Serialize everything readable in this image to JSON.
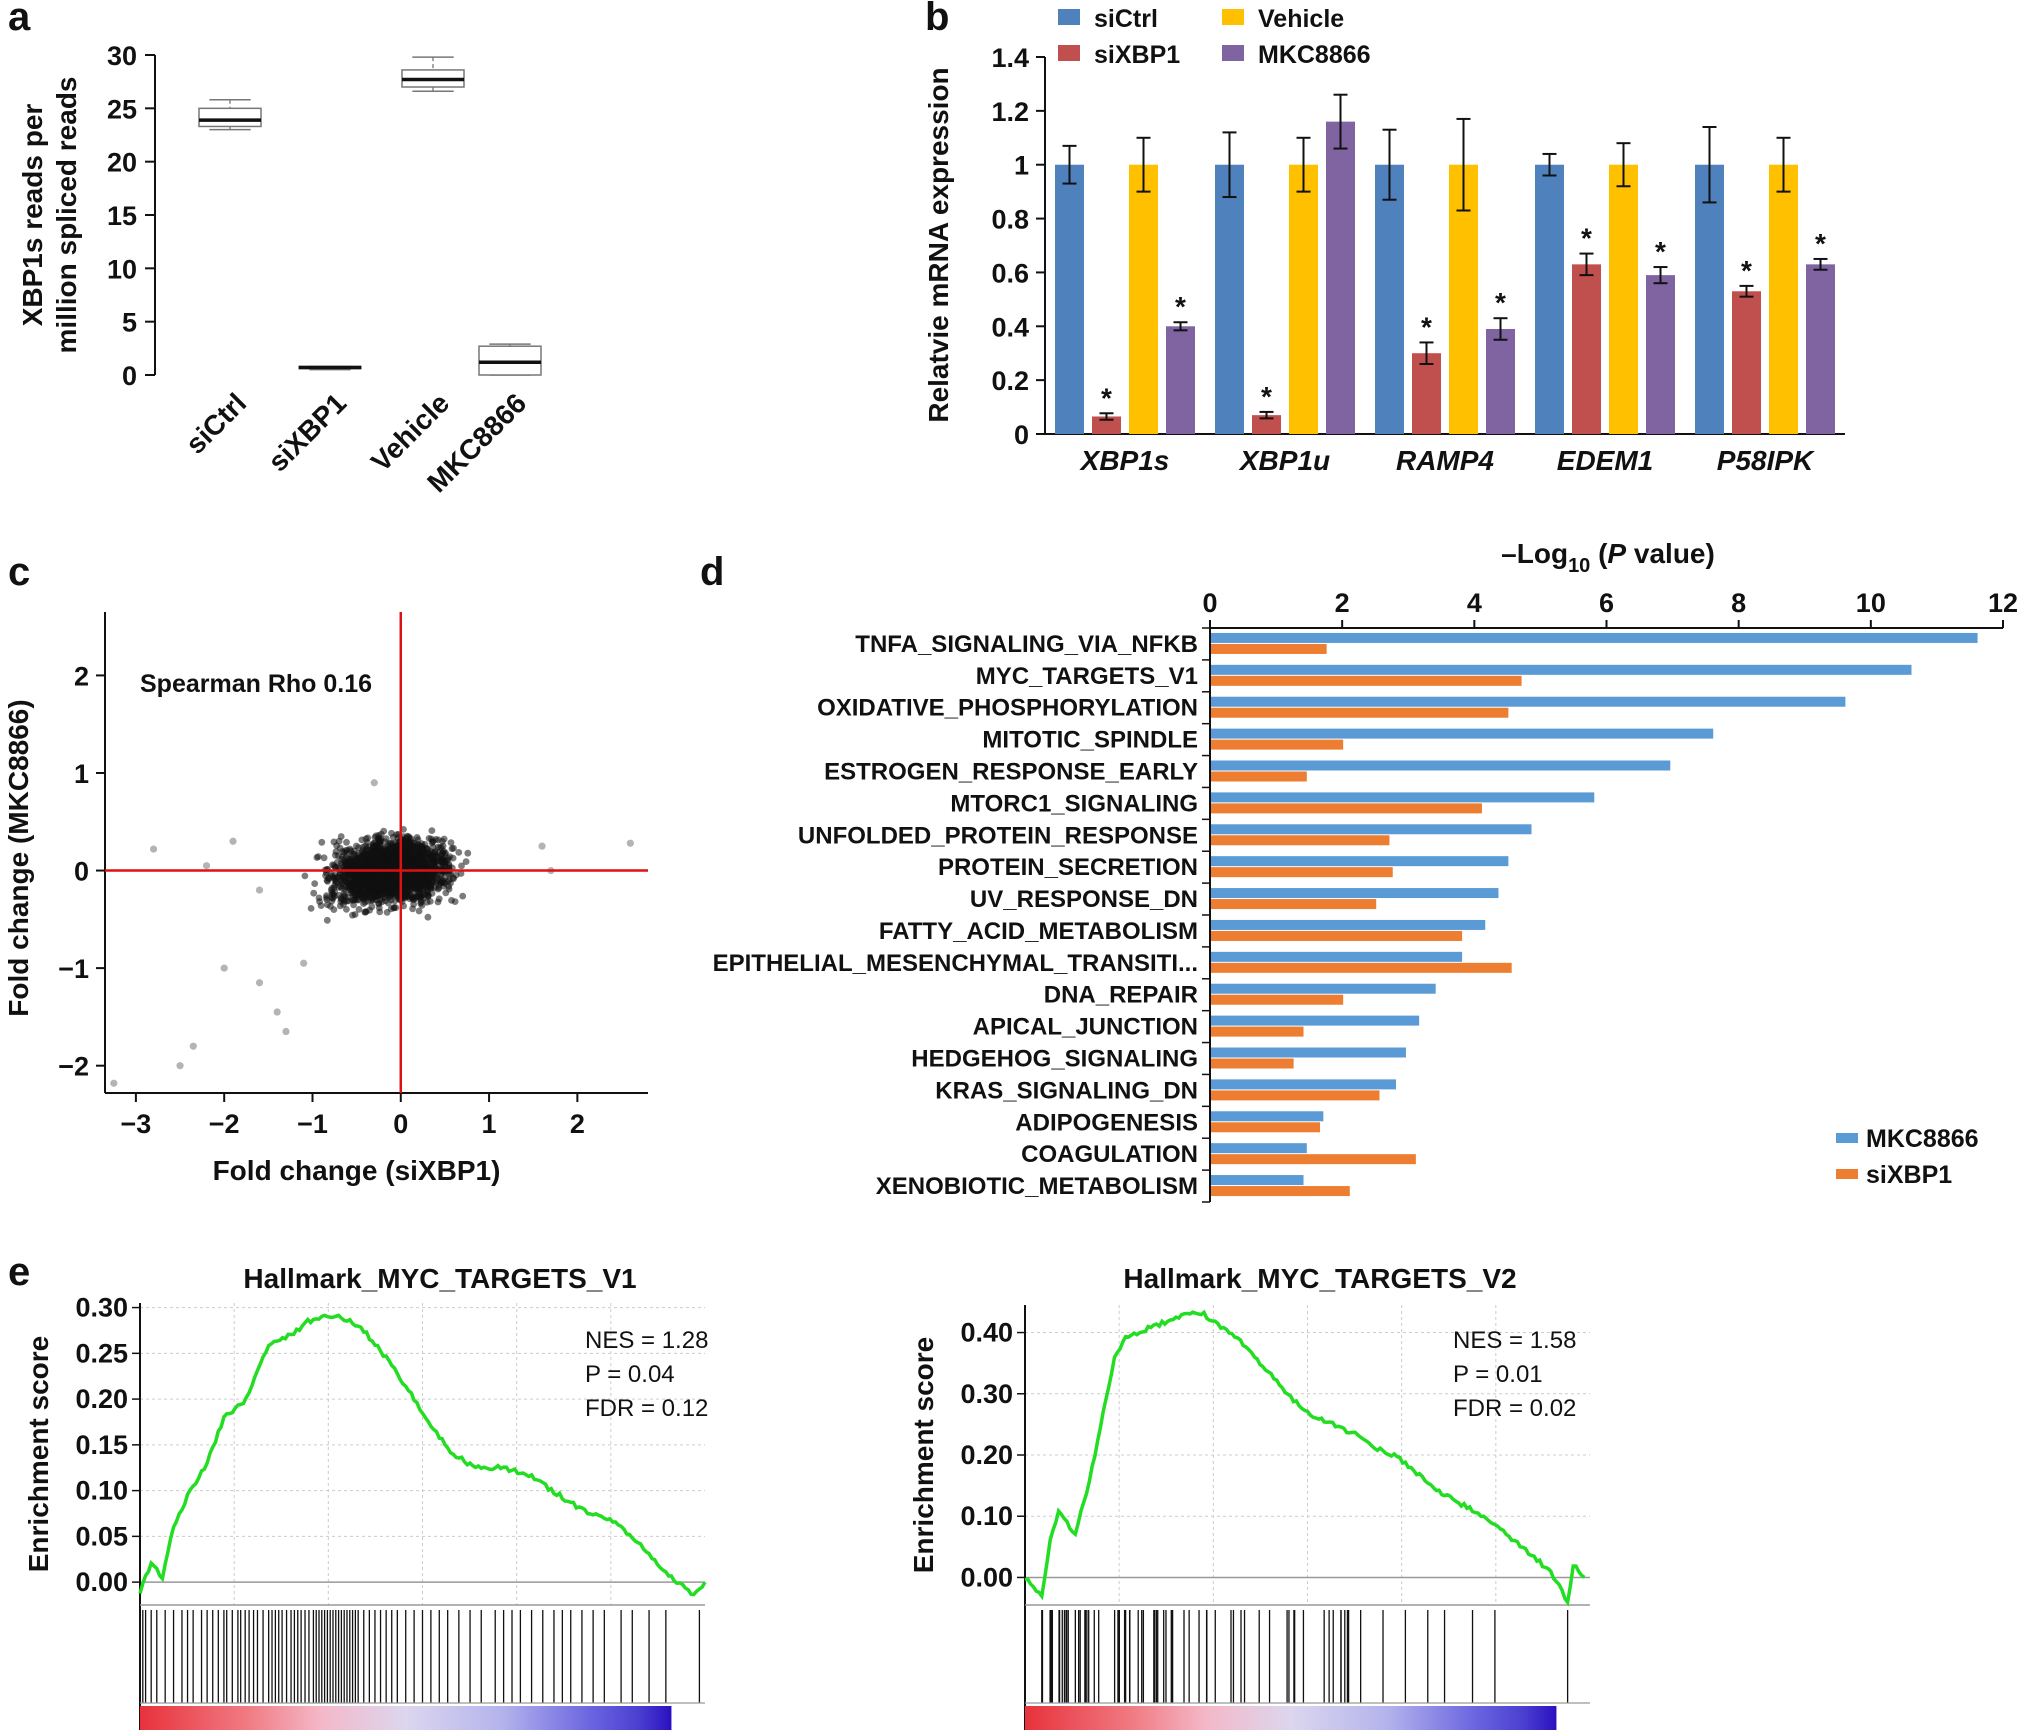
{
  "chart_data": [
    {
      "panel": "a",
      "type": "boxplot",
      "ylabel": "XBP1s reads per million spliced reads",
      "ylim": [
        0,
        30
      ],
      "yticks": [
        "0",
        "5",
        "10",
        "15",
        "20",
        "25",
        "30"
      ],
      "categories": [
        "siCtrl",
        "siXBP1",
        "Vehicle",
        "MKC8866"
      ],
      "boxes": [
        {
          "min": 23.0,
          "q1": 23.3,
          "median": 23.9,
          "q3": 25.0,
          "max": 25.8
        },
        {
          "min": 0.5,
          "q1": 0.6,
          "median": 0.7,
          "q3": 0.8,
          "max": 0.8
        },
        {
          "min": 26.6,
          "q1": 27.0,
          "median": 27.7,
          "q3": 28.6,
          "max": 29.8
        },
        {
          "min": 0.0,
          "q1": 0.0,
          "median": 1.2,
          "q3": 2.7,
          "max": 2.9
        }
      ]
    },
    {
      "panel": "b",
      "type": "bar",
      "ylabel": "Relatvie mRNA expression",
      "ylim": [
        0,
        1.4
      ],
      "yticks": [
        "0",
        "0.2",
        "0.4",
        "0.6",
        "0.8",
        "1",
        "1.2",
        "1.4"
      ],
      "categories": [
        "XBP1s",
        "XBP1u",
        "RAMP4",
        "EDEM1",
        "P58IPK"
      ],
      "legend_order": [
        "siCtrl",
        "siXBP1",
        "Vehicle",
        "MKC8866"
      ],
      "series": [
        {
          "name": "siCtrl",
          "color": "#4f81bd",
          "values": [
            1.0,
            1.0,
            1.0,
            1.0,
            1.0
          ],
          "errors": [
            0.07,
            0.12,
            0.13,
            0.04,
            0.14
          ],
          "sig": [
            false,
            false,
            false,
            false,
            false
          ]
        },
        {
          "name": "siXBP1",
          "color": "#c0504d",
          "values": [
            0.065,
            0.07,
            0.3,
            0.63,
            0.53
          ],
          "errors": [
            0.012,
            0.012,
            0.04,
            0.04,
            0.02
          ],
          "sig": [
            true,
            true,
            true,
            true,
            true
          ]
        },
        {
          "name": "Vehicle",
          "color": "#ffc000",
          "values": [
            1.0,
            1.0,
            1.0,
            1.0,
            1.0
          ],
          "errors": [
            0.1,
            0.1,
            0.17,
            0.08,
            0.1
          ],
          "sig": [
            false,
            false,
            false,
            false,
            false
          ]
        },
        {
          "name": "MKC8866",
          "color": "#8064a2",
          "values": [
            0.4,
            1.16,
            0.39,
            0.59,
            0.63
          ],
          "errors": [
            0.015,
            0.1,
            0.04,
            0.03,
            0.02
          ],
          "sig": [
            true,
            false,
            true,
            true,
            true
          ]
        }
      ],
      "sig_marker": "*"
    },
    {
      "panel": "c",
      "type": "scatter",
      "annotation": "Spearman Rho 0.16",
      "xlabel": "Fold change (siXBP1)",
      "ylabel": "Fold change (MKC8866)",
      "xlim": [
        -3.35,
        2.8
      ],
      "ylim": [
        -2.28,
        2.65
      ],
      "xticks": [
        -3,
        -2,
        -1,
        0,
        1,
        2
      ],
      "yticks": [
        -2,
        -1,
        0,
        1,
        2
      ],
      "xtick_labels": [
        "−3",
        "−2",
        "−1",
        "0",
        "1",
        "2"
      ],
      "ytick_labels": [
        "−2",
        "−1",
        "0",
        "1",
        "2"
      ],
      "reference_lines": {
        "x": 0,
        "y": 0,
        "color": "#dd1111"
      },
      "outliers": [
        [
          -3.25,
          -2.18
        ],
        [
          -2.5,
          -2.0
        ],
        [
          -2.35,
          -1.8
        ],
        [
          -2.8,
          0.22
        ],
        [
          -2.0,
          -1.0
        ],
        [
          -1.3,
          -1.65
        ],
        [
          -1.6,
          -0.2
        ],
        [
          -1.9,
          0.3
        ],
        [
          -2.2,
          0.05
        ],
        [
          2.6,
          0.28
        ],
        [
          1.7,
          0.0
        ],
        [
          1.6,
          0.25
        ],
        [
          -0.3,
          0.9
        ],
        [
          -1.6,
          -1.15
        ],
        [
          -1.4,
          -1.45
        ],
        [
          -1.1,
          -0.95
        ]
      ]
    },
    {
      "panel": "d",
      "type": "bar",
      "orientation": "horizontal",
      "xlabel_prefix": "–Log",
      "xlabel_sub": "10",
      "xlabel_p": "P",
      "xlabel_suffix": "value)",
      "xlim": [
        0,
        12
      ],
      "xticks": [
        "0",
        "2",
        "4",
        "6",
        "8",
        "10",
        "12"
      ],
      "categories": [
        "TNFA_SIGNALING_VIA_NFKB",
        "MYC_TARGETS_V1",
        "OXIDATIVE_PHOSPHORYLATION",
        "MITOTIC_SPINDLE",
        "ESTROGEN_RESPONSE_EARLY",
        "MTORC1_SIGNALING",
        "UNFOLDED_PROTEIN_RESPONSE",
        "PROTEIN_SECRETION",
        "UV_RESPONSE_DN",
        "FATTY_ACID_METABOLISM",
        "EPITHELIAL_MESENCHYMAL_TRANSITI...",
        "DNA_REPAIR",
        "APICAL_JUNCTION",
        "HEDGEHOG_SIGNALING",
        "KRAS_SIGNALING_DN",
        "ADIPOGENESIS",
        "COAGULATION",
        "XENOBIOTIC_METABOLISM"
      ],
      "highlight": "MYC_TARGETS_V1",
      "highlight_color": "#c00000",
      "series": [
        {
          "name": "MKC8866",
          "color": "#5b9bd5",
          "values": [
            11.6,
            10.6,
            9.6,
            7.6,
            6.95,
            5.8,
            4.85,
            4.5,
            4.35,
            4.15,
            3.8,
            3.4,
            3.15,
            2.95,
            2.8,
            1.7,
            1.45,
            1.4
          ]
        },
        {
          "name": "siXBP1",
          "color": "#ed7d31",
          "values": [
            1.75,
            4.7,
            4.5,
            2.0,
            1.45,
            4.1,
            2.7,
            2.75,
            2.5,
            3.8,
            4.55,
            2.0,
            1.4,
            1.25,
            2.55,
            1.65,
            3.1,
            2.1
          ]
        }
      ]
    },
    {
      "panel": "e-left",
      "type": "line",
      "title": "Hallmark_MYC_TARGETS_V1",
      "ylabel": "Enrichment score",
      "ylim": [
        -0.025,
        0.305
      ],
      "yticks": [
        "0.00",
        "0.05",
        "0.10",
        "0.15",
        "0.20",
        "0.25",
        "0.30"
      ],
      "stats": [
        "NES = 1.28",
        "P = 0.04",
        "FDR = 0.12"
      ],
      "x": [
        0,
        2,
        4,
        6,
        9,
        12,
        15,
        19,
        23,
        27,
        30,
        33,
        36,
        40,
        44,
        48,
        52,
        56,
        60,
        65,
        70,
        75,
        80,
        84,
        88,
        91,
        94,
        97,
        99,
        101
      ],
      "y": [
        -0.01,
        0.02,
        0.005,
        0.06,
        0.1,
        0.13,
        0.18,
        0.2,
        0.26,
        0.27,
        0.285,
        0.29,
        0.29,
        0.275,
        0.245,
        0.21,
        0.17,
        0.14,
        0.125,
        0.125,
        0.115,
        0.095,
        0.075,
        0.07,
        0.05,
        0.03,
        0.01,
        -0.005,
        -0.015,
        0.0
      ],
      "hits": [
        0.5,
        1,
        2,
        3,
        4.5,
        6,
        7.5,
        8.5,
        9.5,
        11,
        12,
        13,
        14,
        15,
        15.5,
        16.5,
        17.5,
        18,
        18.8,
        19.5,
        20.3,
        21,
        22,
        23,
        23.6,
        24.2,
        24.8,
        25.4,
        26.2,
        27,
        27.6,
        28.2,
        28.8,
        29.5,
        30.2,
        31,
        31.5,
        32,
        32.5,
        33,
        33.5,
        34,
        34.5,
        35,
        35.5,
        36,
        36.5,
        37,
        37.5,
        38,
        38.5,
        39,
        40,
        41,
        42,
        43,
        44,
        45,
        46,
        47.5,
        49,
        50.5,
        52,
        53.5,
        55,
        57,
        59,
        61,
        63.5,
        65,
        66.5,
        68,
        70,
        72,
        74,
        75.5,
        77,
        79,
        81,
        83,
        86,
        88,
        91,
        94,
        100
      ]
    },
    {
      "panel": "e-right",
      "type": "line",
      "title": "Hallmark_MYC_TARGETS_V2",
      "ylabel": "Enrichment score",
      "ylim": [
        -0.045,
        0.445
      ],
      "yticks": [
        "0.00",
        "0.10",
        "0.20",
        "0.30",
        "0.40"
      ],
      "stats": [
        "NES = 1.58",
        "P = 0.01",
        "FDR = 0.02"
      ],
      "x": [
        0,
        3,
        4.5,
        6,
        7.5,
        9,
        11,
        12.5,
        14,
        15,
        16,
        18,
        20,
        23,
        26,
        29,
        32,
        35,
        38,
        41,
        44,
        47,
        50,
        55,
        60,
        63,
        66,
        70,
        74,
        78,
        82,
        86,
        90,
        94,
        97,
        98,
        100
      ],
      "y": [
        0.0,
        -0.03,
        0.06,
        0.11,
        0.09,
        0.07,
        0.14,
        0.2,
        0.27,
        0.31,
        0.36,
        0.39,
        0.4,
        0.41,
        0.42,
        0.43,
        0.43,
        0.41,
        0.39,
        0.36,
        0.33,
        0.3,
        0.27,
        0.25,
        0.23,
        0.21,
        0.2,
        0.17,
        0.14,
        0.12,
        0.1,
        0.07,
        0.04,
        0.01,
        -0.04,
        0.02,
        0.0
      ]
    }
  ],
  "panel_labels": [
    "a",
    "b",
    "c",
    "d",
    "e"
  ]
}
